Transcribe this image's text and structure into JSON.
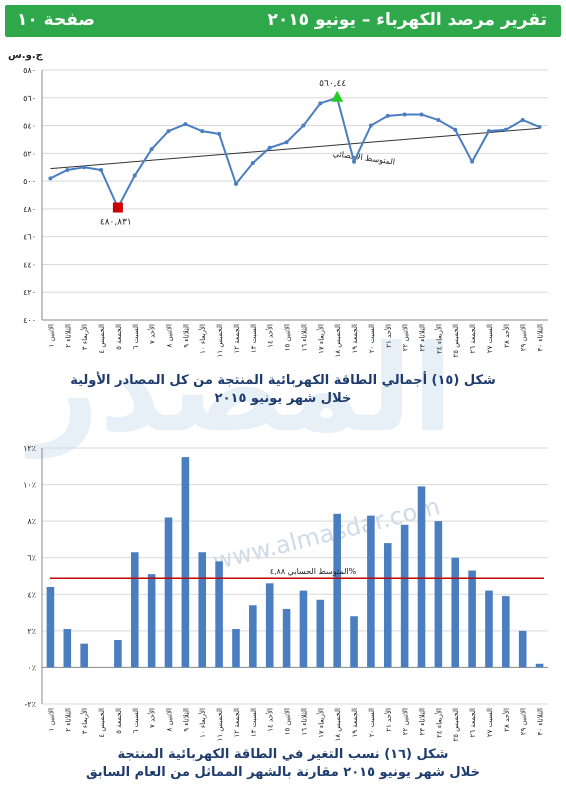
{
  "header": {
    "title": "تقرير مرصد الكهرباء – يونيو ٢٠١٥",
    "page": "صفحة ١٠"
  },
  "watermark": {
    "text": "المصدر",
    "url": "www.almasdar.com"
  },
  "chart1": {
    "caption_line1": "شكل (١٥) أجمالي الطاقة الكهربائية المنتجة من كل المصادر الأولية",
    "caption_line2": "خلال شهر يونيو ٢٠١٥",
    "unit": "ج.و.س",
    "trend_label": "المتوسط الاحصائي",
    "max_label": "٥٦٠,٤٤",
    "min_label": "٤٨٠,٨٣١",
    "y_ticks": [
      "٤٠٠",
      "٤٢٠",
      "٤٤٠",
      "٤٦٠",
      "٤٨٠",
      "٥٠٠",
      "٥٢٠",
      "٥٤٠",
      "٥٦٠",
      "٥٨٠"
    ]
  },
  "chart2": {
    "caption_line1": "شكل (١٦) نسب التغير في الطاقة الكهربائية المنتجة",
    "caption_line2": "خلال شهر يونيو ٢٠١٥ مقارنة بالشهر المماثل من العام السابق",
    "avg_label": "المتوسط الحسابي ٤,٨٨%",
    "y_ticks": [
      "-٢٪",
      "٠٪",
      "٢٪",
      "٤٪",
      "٦٪",
      "٨٪",
      "١٠٪",
      "١٢٪"
    ]
  },
  "colors": {
    "header": "#2ea84a",
    "line": "#4a7ec0",
    "bar": "#4a7ec0",
    "avg": "#c00000",
    "max": "#22cc22",
    "min": "#cc0000"
  },
  "chart_data": [
    {
      "type": "line",
      "title": "",
      "ylabel": "ج.و.س",
      "ylim": [
        400,
        580
      ],
      "categories": [
        "الاثنين ١",
        "الثلاثاء ٢",
        "الأربعاء ٣",
        "الخميس ٤",
        "الجمعة ٥",
        "السبت ٦",
        "الأحد ٧",
        "الاثنين ٨",
        "الثلاثاء ٩",
        "الأربعاء ١٠",
        "الخميس ١١",
        "الجمعة ١٢",
        "السبت ١٣",
        "الأحد ١٤",
        "الاثنين ١٥",
        "الثلاثاء ١٦",
        "الأربعاء ١٧",
        "الخميس ١٨",
        "الجمعة ١٩",
        "السبت ٢٠",
        "الأحد ٢١",
        "الاثنين ٢٢",
        "الثلاثاء ٢٣",
        "الأربعاء ٢٤",
        "الخميس ٢٥",
        "الجمعة ٢٦",
        "السبت ٢٧",
        "الأحد ٢٨",
        "الاثنين ٢٩",
        "الثلاثاء ٣٠"
      ],
      "values": [
        502,
        508,
        510,
        508,
        481,
        504,
        523,
        536,
        541,
        536,
        534,
        498,
        513,
        524,
        528,
        540,
        556,
        560,
        514,
        540,
        547,
        548,
        548,
        544,
        537,
        514,
        536,
        537,
        544,
        539
      ],
      "trend": [
        509,
        538
      ]
    },
    {
      "type": "bar",
      "title": "",
      "ylim": [
        -2,
        12
      ],
      "categories": [
        "الاثنين ١",
        "الثلاثاء ٢",
        "الأربعاء ٣",
        "الخميس ٤",
        "الجمعة ٥",
        "السبت ٦",
        "الأحد ٧",
        "الاثنين ٨",
        "الثلاثاء ٩",
        "الأربعاء ١٠",
        "الخميس ١١",
        "الجمعة ١٢",
        "السبت ١٣",
        "الأحد ١٤",
        "الاثنين ١٥",
        "الثلاثاء ١٦",
        "الأربعاء ١٧",
        "الخميس ١٨",
        "الجمعة ١٩",
        "السبت ٢٠",
        "الأحد ٢١",
        "الاثنين ٢٢",
        "الثلاثاء ٢٣",
        "الأربعاء ٢٤",
        "الخميس ٢٥",
        "الجمعة ٢٦",
        "السبت ٢٧",
        "الأحد ٢٨",
        "الاثنين ٢٩",
        "الثلاثاء ٣٠"
      ],
      "values": [
        4.4,
        2.1,
        1.3,
        0,
        1.5,
        6.3,
        5.1,
        8.2,
        11.5,
        6.3,
        5.8,
        2.1,
        3.4,
        4.6,
        3.2,
        4.2,
        3.7,
        8.4,
        2.8,
        8.3,
        6.8,
        7.8,
        9.9,
        8.0,
        6.0,
        5.3,
        4.2,
        3.9,
        2.0,
        0.2
      ],
      "average": 4.88
    }
  ]
}
